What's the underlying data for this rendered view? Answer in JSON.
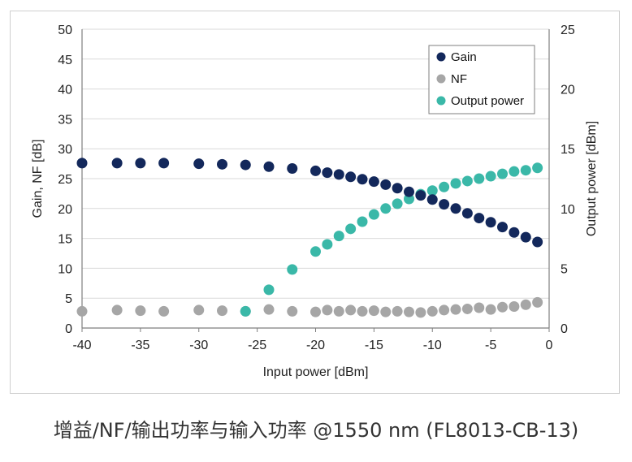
{
  "caption": "增益/NF/输出功率与输入功率 @1550 nm (FL8013-CB-13)",
  "chart_data": {
    "type": "scatter",
    "xlabel": "Input power [dBm]",
    "ylabel": "Gain, NF [dB]",
    "y2label": "Output power [dBm]",
    "xlim": [
      -40,
      0
    ],
    "ylim": [
      0,
      50
    ],
    "y2lim": [
      0,
      25
    ],
    "xticks": [
      -40,
      -35,
      -30,
      -25,
      -20,
      -15,
      -10,
      -5,
      0
    ],
    "yticks": [
      0,
      5,
      10,
      15,
      20,
      25,
      30,
      35,
      40,
      45,
      50
    ],
    "y2ticks": [
      0,
      5,
      10,
      15,
      20,
      25
    ],
    "grid": "horizontal",
    "legend_position": "top-right",
    "series": [
      {
        "name": "Gain",
        "axis": "left",
        "color": "#13285b",
        "points": [
          [
            -40,
            27.6
          ],
          [
            -37,
            27.6
          ],
          [
            -35,
            27.6
          ],
          [
            -33,
            27.6
          ],
          [
            -30,
            27.5
          ],
          [
            -28,
            27.4
          ],
          [
            -26,
            27.3
          ],
          [
            -24,
            27.0
          ],
          [
            -22,
            26.7
          ],
          [
            -20,
            26.3
          ],
          [
            -19,
            26.0
          ],
          [
            -18,
            25.7
          ],
          [
            -17,
            25.3
          ],
          [
            -16,
            24.9
          ],
          [
            -15,
            24.5
          ],
          [
            -14,
            24.0
          ],
          [
            -13,
            23.4
          ],
          [
            -12,
            22.8
          ],
          [
            -11,
            22.2
          ],
          [
            -10,
            21.5
          ],
          [
            -9,
            20.7
          ],
          [
            -8,
            20.0
          ],
          [
            -7,
            19.2
          ],
          [
            -6,
            18.4
          ],
          [
            -5,
            17.7
          ],
          [
            -4,
            16.9
          ],
          [
            -3,
            16.0
          ],
          [
            -2,
            15.2
          ],
          [
            -1,
            14.4
          ]
        ]
      },
      {
        "name": "NF",
        "axis": "left",
        "color": "#a6a6a6",
        "points": [
          [
            -40,
            2.8
          ],
          [
            -37,
            3.0
          ],
          [
            -35,
            2.9
          ],
          [
            -33,
            2.8
          ],
          [
            -30,
            3.0
          ],
          [
            -28,
            2.9
          ],
          [
            -26,
            2.8
          ],
          [
            -24,
            3.1
          ],
          [
            -22,
            2.8
          ],
          [
            -20,
            2.7
          ],
          [
            -19,
            3.0
          ],
          [
            -18,
            2.8
          ],
          [
            -17,
            3.0
          ],
          [
            -16,
            2.8
          ],
          [
            -15,
            2.9
          ],
          [
            -14,
            2.7
          ],
          [
            -13,
            2.8
          ],
          [
            -12,
            2.7
          ],
          [
            -11,
            2.6
          ],
          [
            -10,
            2.8
          ],
          [
            -9,
            3.0
          ],
          [
            -8,
            3.1
          ],
          [
            -7,
            3.2
          ],
          [
            -6,
            3.4
          ],
          [
            -5,
            3.1
          ],
          [
            -4,
            3.5
          ],
          [
            -3,
            3.6
          ],
          [
            -2,
            3.9
          ],
          [
            -1,
            4.3
          ]
        ]
      },
      {
        "name": "Output power",
        "axis": "right",
        "color": "#3ab8a8",
        "points": [
          [
            -26,
            1.4
          ],
          [
            -24,
            3.2
          ],
          [
            -22,
            4.9
          ],
          [
            -20,
            6.4
          ],
          [
            -19,
            7.0
          ],
          [
            -18,
            7.7
          ],
          [
            -17,
            8.3
          ],
          [
            -16,
            8.9
          ],
          [
            -15,
            9.5
          ],
          [
            -14,
            10.0
          ],
          [
            -13,
            10.4
          ],
          [
            -12,
            10.8
          ],
          [
            -11,
            11.2
          ],
          [
            -10,
            11.5
          ],
          [
            -9,
            11.8
          ],
          [
            -8,
            12.1
          ],
          [
            -7,
            12.3
          ],
          [
            -6,
            12.5
          ],
          [
            -5,
            12.7
          ],
          [
            -4,
            12.9
          ],
          [
            -3,
            13.1
          ],
          [
            -2,
            13.2
          ],
          [
            -1,
            13.4
          ]
        ]
      }
    ]
  }
}
